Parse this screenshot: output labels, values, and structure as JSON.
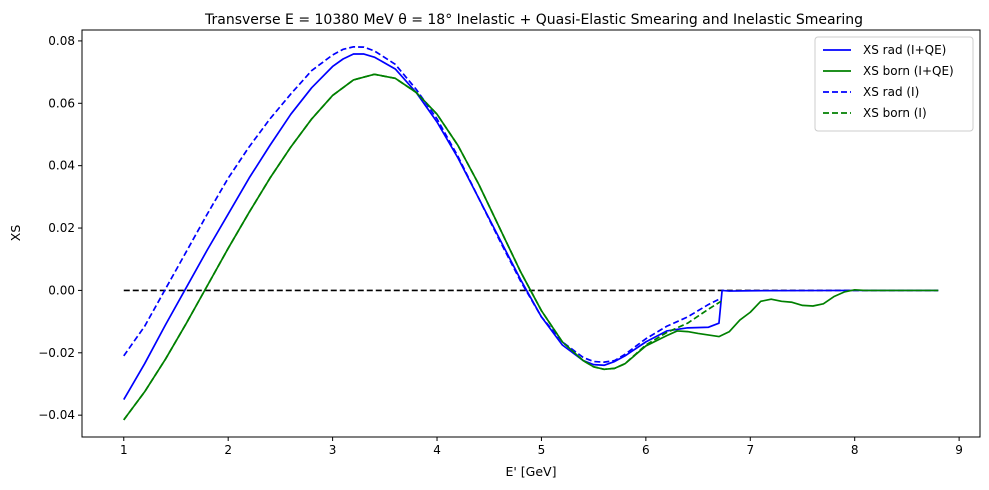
{
  "chart_data": {
    "type": "line",
    "title": "Transverse E = 10380 MeV θ = 18° Inelastic + Quasi-Elastic Smearing and Inelastic Smearing",
    "xlabel": "E' [GeV]",
    "ylabel": "XS",
    "xlim": [
      0.6,
      9.2
    ],
    "ylim": [
      -0.047,
      0.0835
    ],
    "xticks": [
      1,
      2,
      3,
      4,
      5,
      6,
      7,
      8,
      9
    ],
    "xtick_labels": [
      "1",
      "2",
      "3",
      "4",
      "5",
      "6",
      "7",
      "8",
      "9"
    ],
    "yticks": [
      -0.04,
      -0.02,
      0.0,
      0.02,
      0.04,
      0.06,
      0.08
    ],
    "ytick_labels": [
      "−0.04",
      "−0.02",
      "0.00",
      "0.02",
      "0.04",
      "0.06",
      "0.08"
    ],
    "grid": false,
    "legend_position": "top-right",
    "reference_line": {
      "y": 0.0,
      "x_range": [
        1.0,
        8.8
      ],
      "color": "#000000",
      "style": "dashed"
    },
    "series": [
      {
        "name": "XS rad (I+QE)",
        "color": "#0000ff",
        "style": "solid",
        "points": [
          [
            1.0,
            -0.035
          ],
          [
            1.2,
            -0.0235
          ],
          [
            1.4,
            -0.011
          ],
          [
            1.6,
            0.001
          ],
          [
            1.8,
            0.013
          ],
          [
            2.0,
            0.0245
          ],
          [
            2.2,
            0.036
          ],
          [
            2.4,
            0.0465
          ],
          [
            2.6,
            0.0565
          ],
          [
            2.8,
            0.065
          ],
          [
            3.0,
            0.0718
          ],
          [
            3.1,
            0.0742
          ],
          [
            3.2,
            0.0758
          ],
          [
            3.3,
            0.0758
          ],
          [
            3.4,
            0.0748
          ],
          [
            3.6,
            0.071
          ],
          [
            3.8,
            0.0635
          ],
          [
            4.0,
            0.054
          ],
          [
            4.2,
            0.0425
          ],
          [
            4.4,
            0.0295
          ],
          [
            4.6,
            0.0165
          ],
          [
            4.8,
            0.0035
          ],
          [
            5.0,
            -0.0085
          ],
          [
            5.2,
            -0.0175
          ],
          [
            5.4,
            -0.0225
          ],
          [
            5.5,
            -0.0238
          ],
          [
            5.6,
            -0.024
          ],
          [
            5.7,
            -0.0228
          ],
          [
            5.8,
            -0.021
          ],
          [
            6.0,
            -0.0165
          ],
          [
            6.2,
            -0.013
          ],
          [
            6.4,
            -0.012
          ],
          [
            6.6,
            -0.0118
          ],
          [
            6.7,
            -0.0105
          ],
          [
            6.73,
            0.0
          ],
          [
            6.8,
            -0.0002
          ],
          [
            7.0,
            -0.0001
          ],
          [
            8.0,
            0.0
          ],
          [
            8.8,
            0.0
          ]
        ]
      },
      {
        "name": "XS born (I+QE)",
        "color": "#008000",
        "style": "solid",
        "points": [
          [
            1.0,
            -0.0415
          ],
          [
            1.2,
            -0.0325
          ],
          [
            1.4,
            -0.022
          ],
          [
            1.6,
            -0.0105
          ],
          [
            1.8,
            0.0015
          ],
          [
            2.0,
            0.0135
          ],
          [
            2.2,
            0.025
          ],
          [
            2.4,
            0.036
          ],
          [
            2.6,
            0.046
          ],
          [
            2.8,
            0.055
          ],
          [
            3.0,
            0.0625
          ],
          [
            3.2,
            0.0675
          ],
          [
            3.4,
            0.0693
          ],
          [
            3.6,
            0.068
          ],
          [
            3.8,
            0.0635
          ],
          [
            4.0,
            0.0565
          ],
          [
            4.2,
            0.0465
          ],
          [
            4.4,
            0.034
          ],
          [
            4.6,
            0.02
          ],
          [
            4.8,
            0.006
          ],
          [
            5.0,
            -0.0065
          ],
          [
            5.2,
            -0.0165
          ],
          [
            5.4,
            -0.0225
          ],
          [
            5.5,
            -0.0245
          ],
          [
            5.6,
            -0.0253
          ],
          [
            5.7,
            -0.025
          ],
          [
            5.8,
            -0.0235
          ],
          [
            6.0,
            -0.0178
          ],
          [
            6.2,
            -0.0145
          ],
          [
            6.3,
            -0.013
          ],
          [
            6.4,
            -0.0132
          ],
          [
            6.5,
            -0.0138
          ],
          [
            6.7,
            -0.0148
          ],
          [
            6.8,
            -0.0132
          ],
          [
            6.9,
            -0.0095
          ],
          [
            7.0,
            -0.007
          ],
          [
            7.1,
            -0.0035
          ],
          [
            7.2,
            -0.0028
          ],
          [
            7.3,
            -0.0035
          ],
          [
            7.4,
            -0.0038
          ],
          [
            7.5,
            -0.0048
          ],
          [
            7.6,
            -0.005
          ],
          [
            7.7,
            -0.0043
          ],
          [
            7.8,
            -0.002
          ],
          [
            7.9,
            -0.0005
          ],
          [
            8.0,
            0.0002
          ],
          [
            8.1,
            0.0
          ],
          [
            8.8,
            0.0
          ]
        ]
      },
      {
        "name": "XS rad (I)",
        "color": "#0000ff",
        "style": "dashed",
        "points": [
          [
            1.0,
            -0.021
          ],
          [
            1.2,
            -0.0115
          ],
          [
            1.4,
            0.0005
          ],
          [
            1.6,
            0.0125
          ],
          [
            1.8,
            0.0245
          ],
          [
            2.0,
            0.036
          ],
          [
            2.2,
            0.046
          ],
          [
            2.4,
            0.055
          ],
          [
            2.6,
            0.063
          ],
          [
            2.8,
            0.0705
          ],
          [
            3.0,
            0.0755
          ],
          [
            3.1,
            0.0773
          ],
          [
            3.2,
            0.0781
          ],
          [
            3.3,
            0.078
          ],
          [
            3.4,
            0.0768
          ],
          [
            3.6,
            0.0725
          ],
          [
            3.8,
            0.0645
          ],
          [
            4.0,
            0.055
          ],
          [
            4.2,
            0.043
          ],
          [
            4.4,
            0.0295
          ],
          [
            4.6,
            0.016
          ],
          [
            4.8,
            0.003
          ],
          [
            5.0,
            -0.0085
          ],
          [
            5.2,
            -0.0165
          ],
          [
            5.4,
            -0.0215
          ],
          [
            5.5,
            -0.0228
          ],
          [
            5.6,
            -0.023
          ],
          [
            5.7,
            -0.0225
          ],
          [
            5.8,
            -0.0205
          ],
          [
            6.0,
            -0.0155
          ],
          [
            6.2,
            -0.0115
          ],
          [
            6.4,
            -0.0085
          ],
          [
            6.6,
            -0.0045
          ],
          [
            6.72,
            -0.0025
          ]
        ]
      },
      {
        "name": "XS born (I)",
        "color": "#008000",
        "style": "dashed",
        "points": [
          [
            1.0,
            -0.0415
          ],
          [
            1.2,
            -0.0325
          ],
          [
            1.4,
            -0.022
          ],
          [
            1.6,
            -0.0105
          ],
          [
            1.8,
            0.0015
          ],
          [
            2.0,
            0.0135
          ],
          [
            2.2,
            0.025
          ],
          [
            2.4,
            0.036
          ],
          [
            2.6,
            0.046
          ],
          [
            2.8,
            0.055
          ],
          [
            3.0,
            0.0625
          ],
          [
            3.2,
            0.0675
          ],
          [
            3.4,
            0.0693
          ],
          [
            3.6,
            0.068
          ],
          [
            3.8,
            0.0635
          ],
          [
            4.0,
            0.0565
          ],
          [
            4.2,
            0.0465
          ],
          [
            4.4,
            0.034
          ],
          [
            4.6,
            0.02
          ],
          [
            4.8,
            0.006
          ],
          [
            5.0,
            -0.0065
          ],
          [
            5.2,
            -0.0165
          ],
          [
            5.4,
            -0.0225
          ],
          [
            5.5,
            -0.0245
          ],
          [
            5.6,
            -0.0253
          ],
          [
            5.7,
            -0.025
          ],
          [
            5.8,
            -0.0235
          ],
          [
            6.0,
            -0.0175
          ],
          [
            6.2,
            -0.0135
          ],
          [
            6.4,
            -0.0105
          ],
          [
            6.6,
            -0.006
          ],
          [
            6.72,
            -0.0035
          ]
        ]
      }
    ]
  }
}
